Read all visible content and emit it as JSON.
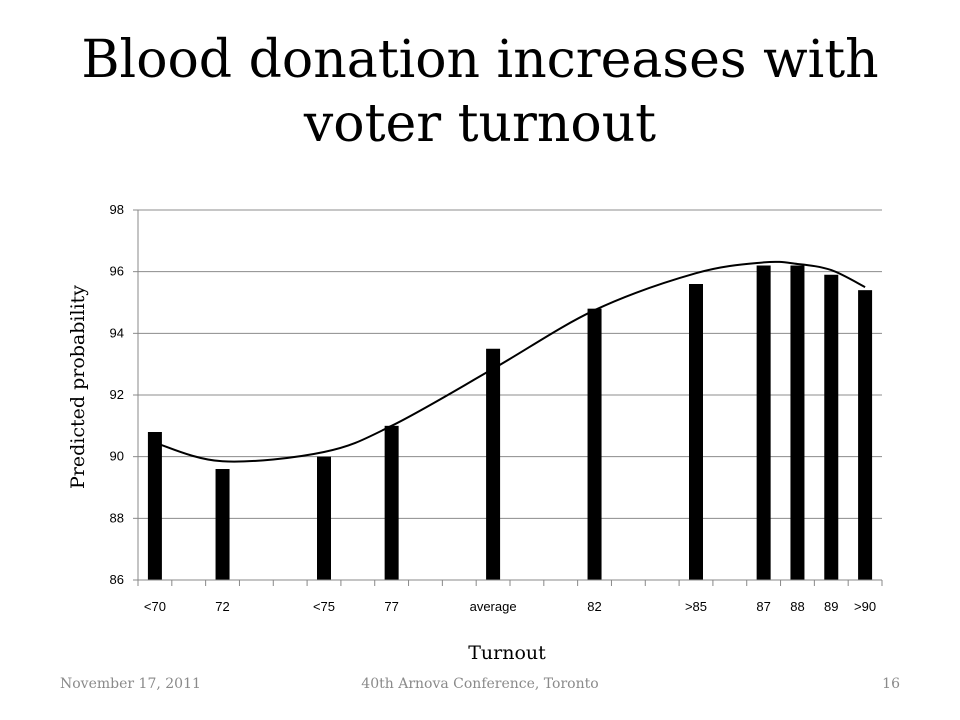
{
  "slide": {
    "title": "Blood donation increases with voter turnout",
    "footer_date": "November 17, 2011",
    "footer_center": "40th Arnova Conference, Toronto",
    "page_number": "16"
  },
  "chart_data": {
    "type": "bar",
    "title": "",
    "xlabel": "Turnout",
    "ylabel": "Predicted probability",
    "ylim": [
      86,
      98
    ],
    "yticks": [
      86,
      88,
      90,
      92,
      94,
      96,
      98
    ],
    "grid": true,
    "legend": "none",
    "x_slots": 22,
    "categories": [
      "<70",
      "72",
      "<75",
      "77",
      "average",
      "82",
      ">85",
      "87",
      "88",
      "89",
      ">90"
    ],
    "category_slots": [
      0,
      2,
      5,
      7,
      10,
      13,
      16,
      18,
      19,
      20,
      21
    ],
    "values": [
      90.8,
      89.6,
      90.0,
      91.0,
      93.5,
      94.8,
      95.6,
      96.2,
      96.2,
      95.9,
      95.4
    ],
    "bar_color": "#000000",
    "trendline": {
      "type": "polynomial-3",
      "color": "#000000",
      "points": [
        [
          0,
          90.45
        ],
        [
          2,
          89.85
        ],
        [
          5,
          90.15
        ],
        [
          7,
          91.0
        ],
        [
          10,
          92.85
        ],
        [
          13,
          94.75
        ],
        [
          16,
          95.95
        ],
        [
          18,
          96.3
        ],
        [
          19,
          96.25
        ],
        [
          20,
          96.05
        ],
        [
          21,
          95.5
        ]
      ]
    }
  }
}
